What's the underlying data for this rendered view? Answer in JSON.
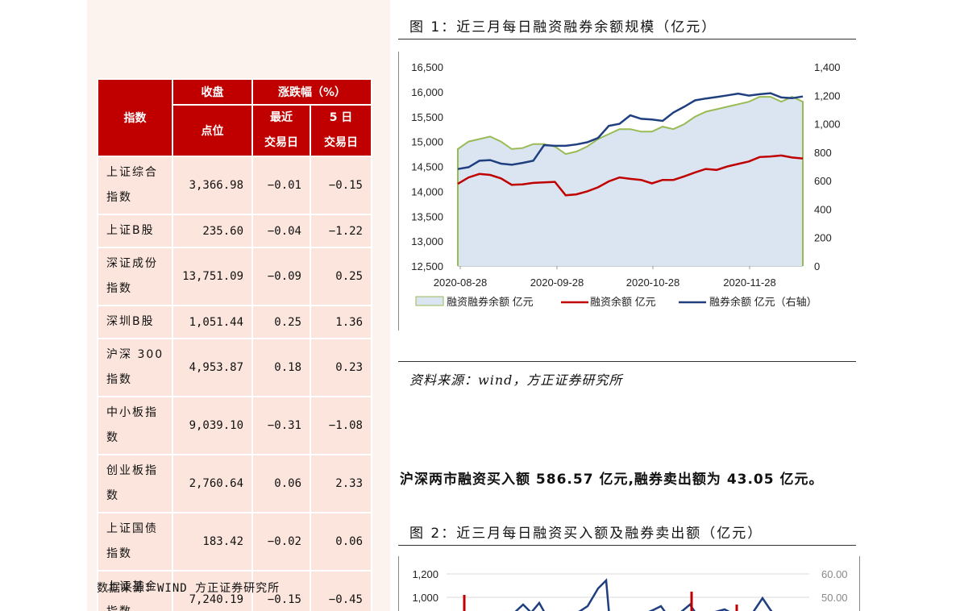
{
  "table": {
    "header": {
      "index": "指数",
      "close": "收盘",
      "point": "点位",
      "change": "涨跌幅（%）",
      "latest_line1": "最近",
      "latest_line2": "交易日",
      "five_line1": "5 日",
      "five_line2": "交易日"
    },
    "rows": [
      {
        "name": "上证综合指数",
        "close": "3,366.98",
        "latest": "−0.01",
        "five": "−0.15"
      },
      {
        "name": "上证B股",
        "close": "235.60",
        "latest": "−0.04",
        "five": "−1.22"
      },
      {
        "name": "深证成份指数",
        "close": "13,751.09",
        "latest": "−0.09",
        "five": "0.25"
      },
      {
        "name": "深圳B股",
        "close": "1,051.44",
        "latest": "0.25",
        "five": "1.36"
      },
      {
        "name": "沪深 300 指数",
        "close": "4,953.87",
        "latest": "0.18",
        "five": "0.23"
      },
      {
        "name": "中小板指数",
        "close": "9,039.10",
        "latest": "−0.31",
        "five": "−1.08"
      },
      {
        "name": "创业板指数",
        "close": "2,760.64",
        "latest": "0.06",
        "five": "2.33"
      },
      {
        "name": "上证国债指数",
        "close": "183.42",
        "latest": "−0.02",
        "five": "0.06"
      },
      {
        "name": "上证基金指数",
        "close": "7,240.19",
        "latest": "−0.15",
        "five": "−0.45"
      }
    ],
    "source": "数据来源：WIND 方正证券研究所"
  },
  "figure1": {
    "title": "图 1：近三月每日融资融券余额规模（亿元）",
    "source": "资料来源：wind，方正证券研究所"
  },
  "summary_text": "沪深两市融资买入额 586.57 亿元,融券卖出额为 43.05 亿元。",
  "figure2": {
    "title": "图 2：近三月每日融资买入额及融券卖出额（亿元）"
  },
  "chart_data": [
    {
      "type": "line",
      "x_ticks": [
        "2020-08-28",
        "2020-09-28",
        "2020-10-28",
        "2020-11-28"
      ],
      "y_left_ticks": [
        "16,500",
        "16,000",
        "15,500",
        "15,000",
        "14,500",
        "14,000",
        "13,500",
        "13,000",
        "12,500"
      ],
      "y_right_ticks": [
        "1,400",
        "1,200",
        "1,000",
        "800",
        "600",
        "400",
        "200",
        "0"
      ],
      "ylim_left": [
        12500,
        16500
      ],
      "ylim_right": [
        0,
        1400
      ],
      "legend": [
        "融资融券余额 亿元",
        "融资余额 亿元",
        "融券余额 亿元（右轴）"
      ],
      "series": [
        {
          "name": "融资融券余额 亿元",
          "type": "area",
          "axis": "left",
          "color": "#99bb55",
          "values": [
            14850,
            15000,
            15050,
            15100,
            15000,
            14850,
            14870,
            14950,
            14950,
            14900,
            14750,
            14800,
            14900,
            15050,
            15150,
            15250,
            15250,
            15200,
            15200,
            15300,
            15250,
            15350,
            15500,
            15600,
            15650,
            15700,
            15750,
            15800,
            15900,
            15900,
            15800,
            15900,
            15800
          ]
        },
        {
          "name": "融资余额 亿元",
          "type": "line",
          "axis": "left",
          "color": "#c00000",
          "values": [
            14150,
            14280,
            14350,
            14330,
            14260,
            14130,
            14140,
            14170,
            14180,
            14190,
            13920,
            13940,
            14000,
            14080,
            14200,
            14280,
            14250,
            14230,
            14160,
            14230,
            14230,
            14300,
            14380,
            14450,
            14430,
            14500,
            14550,
            14600,
            14690,
            14700,
            14720,
            14680,
            14660
          ]
        },
        {
          "name": "融券余额 亿元（右轴）",
          "type": "line",
          "axis": "right",
          "color": "#1f3f7f",
          "values": [
            682,
            695,
            740,
            745,
            720,
            712,
            725,
            740,
            850,
            845,
            845,
            855,
            870,
            900,
            985,
            1000,
            1060,
            1035,
            1030,
            1020,
            1080,
            1120,
            1165,
            1178,
            1188,
            1200,
            1212,
            1198,
            1208,
            1215,
            1185,
            1180,
            1192
          ]
        }
      ]
    },
    {
      "type": "line",
      "y_left_ticks": [
        "1,200",
        "1,000"
      ],
      "y_right_ticks": [
        "60.00",
        "50.00"
      ]
    }
  ]
}
